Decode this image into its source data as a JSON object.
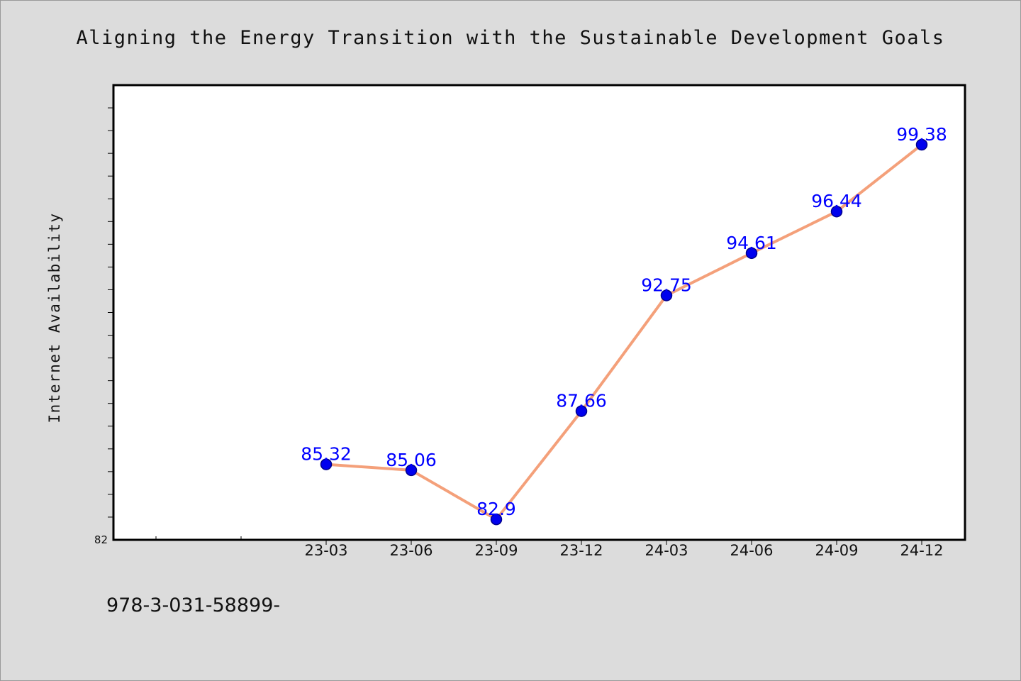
{
  "chart_data": {
    "type": "line",
    "title": "Aligning the Energy Transition with the Sustainable Development Goals",
    "xlabel": "",
    "ylabel": "Internet Availability",
    "categories": [
      "23-03",
      "23-06",
      "23-09",
      "23-12",
      "24-03",
      "24-06",
      "24-09",
      "24-12"
    ],
    "series": [
      {
        "values": [
          85.32,
          85.06,
          82.9,
          87.66,
          92.75,
          94.61,
          96.44,
          99.38
        ],
        "labels": [
          "85.32",
          "85.06",
          "82.9",
          "87.66",
          "92.75",
          "94.61",
          "96.44",
          "99.38"
        ]
      }
    ],
    "ylim": [
      82,
      102
    ],
    "ytick_labels": [
      "82"
    ],
    "grid": false,
    "legend": "none",
    "colors": {
      "line": "#f4a07a",
      "marker": "#0000ee",
      "marker_edge": "#00008b",
      "data_label": "#0000ff",
      "plot_bg": "#ffffff",
      "page_bg": "#dcdcdc"
    }
  },
  "footer": {
    "text": "978-3-031-58899-"
  }
}
